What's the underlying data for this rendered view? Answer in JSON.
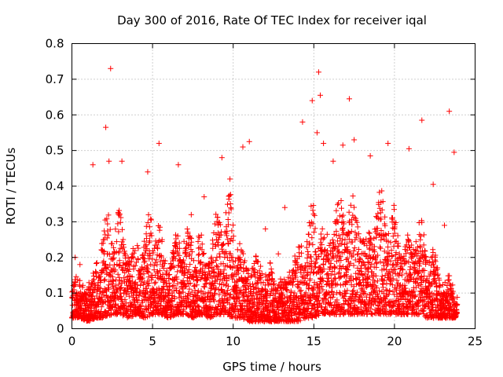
{
  "chart_data": {
    "type": "scatter",
    "title": "Day 300 of 2016, Rate Of TEC Index for receiver iqal",
    "xlabel": "GPS time / hours",
    "ylabel": "ROTI / TECUs",
    "xlim": [
      0,
      25
    ],
    "ylim": [
      0,
      0.8
    ],
    "xticks": [
      "0",
      "5",
      "10",
      "15",
      "20",
      "25"
    ],
    "yticks": [
      "0",
      "0.1",
      "0.2",
      "0.3",
      "0.4",
      "0.5",
      "0.6",
      "0.7",
      "0.8"
    ],
    "grid": true,
    "marker": "+",
    "color": "#ff0000",
    "series": [
      {
        "name": "ROTI",
        "x": [
          2.4,
          15.3,
          15.4,
          14.9,
          17.2,
          2.1,
          21.7,
          23.4,
          14.3,
          15.2,
          23.7,
          5.4,
          11.0,
          15.6,
          16.8,
          17.5,
          19.6,
          10.6,
          9.3,
          2.3,
          1.3,
          3.1,
          4.7,
          6.6,
          18.5,
          20.9,
          22.4,
          16.2,
          9.8,
          12.0,
          13.2,
          12.8,
          23.1,
          0.2,
          0.5,
          8.2,
          7.4
        ],
        "y": [
          0.73,
          0.72,
          0.655,
          0.64,
          0.645,
          0.565,
          0.585,
          0.61,
          0.58,
          0.55,
          0.495,
          0.52,
          0.525,
          0.52,
          0.515,
          0.53,
          0.52,
          0.51,
          0.48,
          0.47,
          0.46,
          0.47,
          0.44,
          0.46,
          0.485,
          0.505,
          0.405,
          0.47,
          0.42,
          0.28,
          0.34,
          0.21,
          0.29,
          0.2,
          0.18,
          0.37,
          0.32
        ]
      }
    ],
    "envelope": {
      "hours": [
        0,
        0.5,
        1,
        1.5,
        2,
        2.5,
        3,
        3.5,
        4,
        4.5,
        5,
        5.5,
        6,
        6.5,
        7,
        7.5,
        8,
        8.5,
        9,
        9.5,
        10,
        10.5,
        11,
        11.5,
        12,
        12.5,
        13,
        13.5,
        14,
        14.5,
        15,
        15.5,
        16,
        16.5,
        17,
        17.5,
        18,
        18.5,
        19,
        19.5,
        20,
        20.5,
        21,
        21.5,
        22,
        22.5,
        23,
        23.5,
        23.9
      ],
      "upper": [
        0.17,
        0.15,
        0.19,
        0.28,
        0.33,
        0.36,
        0.38,
        0.33,
        0.34,
        0.3,
        0.38,
        0.33,
        0.27,
        0.35,
        0.3,
        0.28,
        0.34,
        0.32,
        0.4,
        0.41,
        0.38,
        0.3,
        0.28,
        0.24,
        0.2,
        0.18,
        0.2,
        0.26,
        0.26,
        0.29,
        0.4,
        0.42,
        0.43,
        0.38,
        0.4,
        0.44,
        0.42,
        0.38,
        0.43,
        0.4,
        0.4,
        0.35,
        0.37,
        0.32,
        0.28,
        0.26,
        0.2,
        0.18,
        0.11
      ],
      "lower": [
        0.03,
        0.03,
        0.02,
        0.03,
        0.03,
        0.04,
        0.04,
        0.03,
        0.04,
        0.03,
        0.04,
        0.04,
        0.03,
        0.04,
        0.04,
        0.03,
        0.04,
        0.03,
        0.04,
        0.04,
        0.03,
        0.03,
        0.02,
        0.02,
        0.02,
        0.02,
        0.02,
        0.02,
        0.02,
        0.03,
        0.03,
        0.04,
        0.04,
        0.04,
        0.04,
        0.04,
        0.04,
        0.04,
        0.04,
        0.04,
        0.04,
        0.04,
        0.04,
        0.04,
        0.03,
        0.03,
        0.03,
        0.03,
        0.03
      ]
    }
  }
}
